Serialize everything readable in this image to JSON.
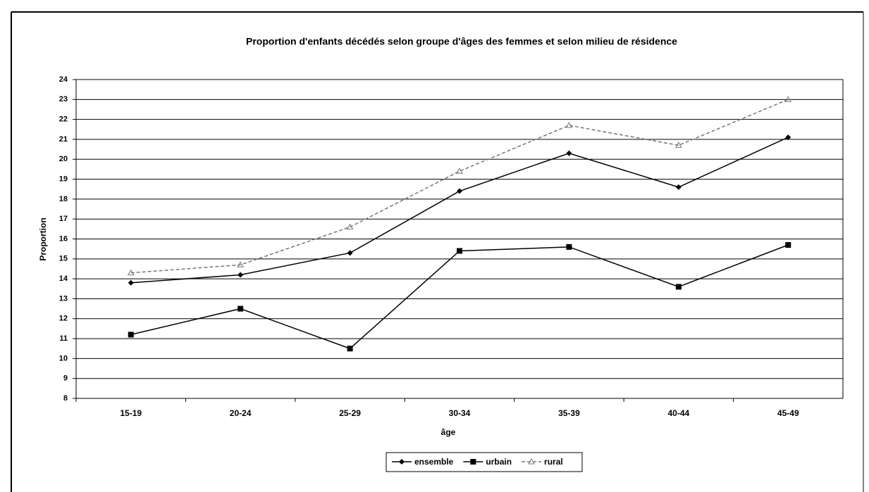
{
  "chart_data": {
    "type": "line",
    "title": "Proportion d'enfants décédés selon groupe d'âges des femmes et selon milieu de résidence",
    "xlabel": "âge",
    "ylabel": "Proportion",
    "categories": [
      "15-19",
      "20-24",
      "25-29",
      "30-34",
      "35-39",
      "40-44",
      "45-49"
    ],
    "series": [
      {
        "name": "ensemble",
        "color": "#000000",
        "marker": "diamond",
        "dashed": false,
        "values": [
          13.8,
          14.2,
          15.3,
          18.4,
          20.3,
          18.6,
          21.1
        ]
      },
      {
        "name": "urbain",
        "color": "#000000",
        "marker": "square",
        "dashed": false,
        "values": [
          11.2,
          12.5,
          10.5,
          15.4,
          15.6,
          13.6,
          15.7
        ]
      },
      {
        "name": "rural",
        "color": "#777777",
        "marker": "triangle",
        "dashed": true,
        "values": [
          14.3,
          14.7,
          16.6,
          19.4,
          21.7,
          20.7,
          23.0
        ]
      }
    ],
    "ylim": [
      8,
      24
    ],
    "yticks": [
      8,
      9,
      10,
      11,
      12,
      13,
      14,
      15,
      16,
      17,
      18,
      19,
      20,
      21,
      22,
      23,
      24
    ],
    "grid": true,
    "legend": "bottom"
  }
}
